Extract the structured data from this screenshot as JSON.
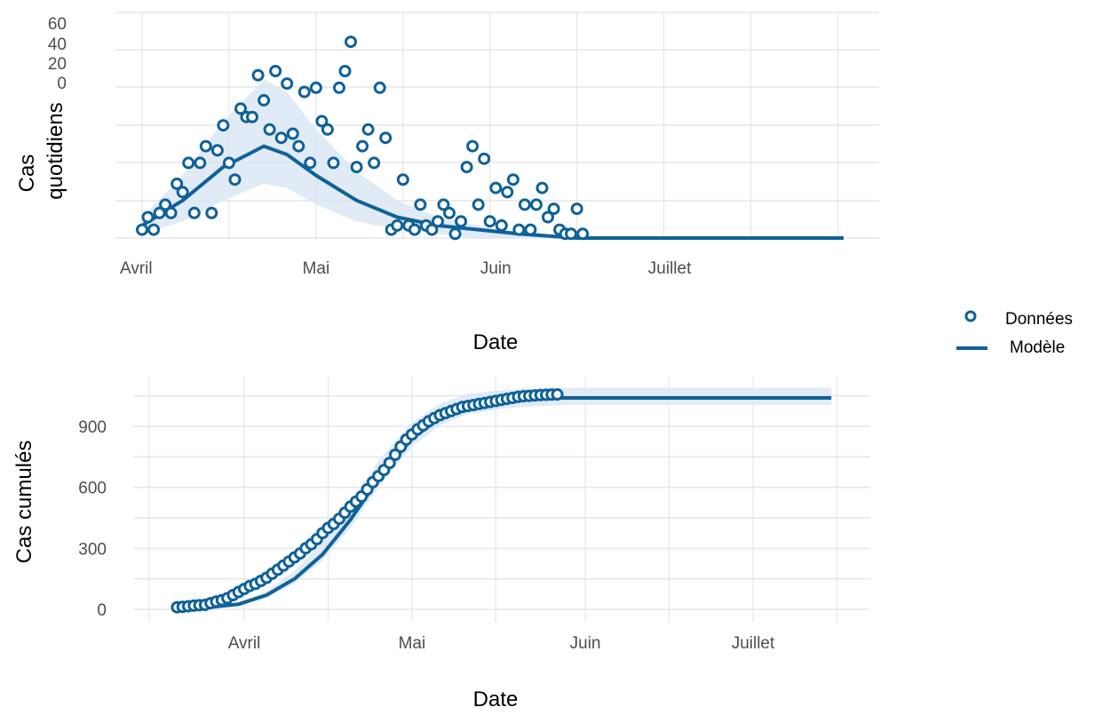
{
  "colors": {
    "series": "#0f6199",
    "ribbon": "#dbe7f3",
    "grid_major": "#e6e6e6",
    "grid_minor": "#f2f2f2",
    "point_fill": "#ffffff"
  },
  "legend": {
    "placement": "right",
    "items": [
      {
        "label": "Données",
        "shape": "open-circle"
      },
      {
        "label": "Modèle",
        "shape": "line"
      }
    ]
  },
  "chart_data": [
    {
      "id": "daily",
      "type": "line",
      "xlabel": "Date",
      "ylabel": "Cas quotidiens",
      "ylabel_lines": [
        "Cas",
        "quotidiens"
      ],
      "x_tick_labels": [
        "Avril",
        "Mai",
        "Juin",
        "Juillet"
      ],
      "x_tick_dates": [
        "2020-04-01",
        "2020-05-01",
        "2020-06-01",
        "2020-07-01"
      ],
      "xlim": [
        "2020-04-01",
        "2020-07-31"
      ],
      "y_tick_labels": [
        "60",
        "40",
        "20",
        "0"
      ],
      "grid": true,
      "series": [
        {
          "name": "Données",
          "kind": "points",
          "x": [
            "2020-04-01",
            "2020-04-02",
            "2020-04-03",
            "2020-04-04",
            "2020-04-05",
            "2020-04-06",
            "2020-04-07",
            "2020-04-08",
            "2020-04-09",
            "2020-04-10",
            "2020-04-11",
            "2020-04-12",
            "2020-04-13",
            "2020-04-14",
            "2020-04-15",
            "2020-04-16",
            "2020-04-17",
            "2020-04-18",
            "2020-04-19",
            "2020-04-20",
            "2020-04-21",
            "2020-04-22",
            "2020-04-23",
            "2020-04-24",
            "2020-04-25",
            "2020-04-26",
            "2020-04-27",
            "2020-04-28",
            "2020-04-29",
            "2020-04-30",
            "2020-05-01",
            "2020-05-02",
            "2020-05-03",
            "2020-05-04",
            "2020-05-05",
            "2020-05-06",
            "2020-05-07",
            "2020-05-08",
            "2020-05-09",
            "2020-05-10",
            "2020-05-11",
            "2020-05-12",
            "2020-05-13",
            "2020-05-14",
            "2020-05-15",
            "2020-05-16",
            "2020-05-17",
            "2020-05-18",
            "2020-05-19",
            "2020-05-20",
            "2020-05-21",
            "2020-05-22",
            "2020-05-23",
            "2020-05-24",
            "2020-05-25",
            "2020-05-26",
            "2020-05-27",
            "2020-05-28",
            "2020-05-29",
            "2020-05-30",
            "2020-05-31",
            "2020-06-01",
            "2020-06-02",
            "2020-06-03",
            "2020-06-04",
            "2020-06-05",
            "2020-06-06",
            "2020-06-07",
            "2020-06-08",
            "2020-06-09",
            "2020-06-10",
            "2020-06-11",
            "2020-06-12",
            "2020-06-13",
            "2020-06-14",
            "2020-06-15",
            "2020-06-16"
          ],
          "y": [
            2,
            5,
            2,
            6,
            8,
            6,
            13,
            11,
            18,
            6,
            18,
            22,
            6,
            21,
            27,
            18,
            14,
            31,
            29,
            29,
            39,
            33,
            26,
            40,
            24,
            37,
            25,
            22,
            35,
            18,
            36,
            28,
            26,
            18,
            36,
            40,
            47,
            17,
            22,
            26,
            18,
            36,
            24,
            2,
            3,
            14,
            3,
            2,
            8,
            3,
            2,
            4,
            8,
            6,
            1,
            4,
            17,
            22,
            8,
            19,
            4,
            12,
            3,
            11,
            14,
            2,
            8,
            2,
            8,
            12,
            5,
            7,
            2,
            1,
            1,
            7,
            1
          ]
        },
        {
          "name": "Modèle",
          "kind": "line",
          "x": [
            "2020-04-01",
            "2020-04-08",
            "2020-04-15",
            "2020-04-22",
            "2020-04-26",
            "2020-05-01",
            "2020-05-08",
            "2020-05-15",
            "2020-05-22",
            "2020-05-29",
            "2020-06-05",
            "2020-06-15",
            "2020-07-01",
            "2020-07-31"
          ],
          "y": [
            3,
            9,
            17,
            22,
            20,
            15,
            9,
            5,
            3,
            2,
            1,
            0,
            0,
            0
          ]
        },
        {
          "name": "Intervalle",
          "kind": "ribbon",
          "x": [
            "2020-04-01",
            "2020-04-08",
            "2020-04-15",
            "2020-04-22",
            "2020-04-26",
            "2020-05-01",
            "2020-05-08",
            "2020-05-15",
            "2020-05-22",
            "2020-05-29",
            "2020-06-05",
            "2020-06-15",
            "2020-07-01",
            "2020-07-31"
          ],
          "lower": [
            1,
            4,
            9,
            13,
            12,
            8,
            4,
            2,
            1,
            0,
            0,
            0,
            0,
            0
          ],
          "upper": [
            5,
            15,
            28,
            38,
            35,
            26,
            16,
            9,
            5,
            3,
            1,
            0,
            0,
            0
          ]
        }
      ]
    },
    {
      "id": "cumulative",
      "type": "line",
      "xlabel": "Date",
      "ylabel": "Cas cumulés",
      "x_tick_labels": [
        "Avril",
        "Mai",
        "Juin",
        "Juillet"
      ],
      "x_tick_dates": [
        "2020-04-01",
        "2020-05-01",
        "2020-06-01",
        "2020-07-01"
      ],
      "xlim": [
        "2020-03-15",
        "2020-07-15"
      ],
      "y_ticks": [
        0,
        300,
        600,
        900
      ],
      "ylim": [
        -50,
        1150
      ],
      "grid": true,
      "series": [
        {
          "name": "Données",
          "kind": "points",
          "x": [
            "2020-03-20",
            "2020-03-21",
            "2020-03-22",
            "2020-03-23",
            "2020-03-24",
            "2020-03-25",
            "2020-03-26",
            "2020-03-27",
            "2020-03-28",
            "2020-03-29",
            "2020-03-30",
            "2020-03-31",
            "2020-04-01",
            "2020-04-02",
            "2020-04-03",
            "2020-04-04",
            "2020-04-05",
            "2020-04-06",
            "2020-04-07",
            "2020-04-08",
            "2020-04-09",
            "2020-04-10",
            "2020-04-11",
            "2020-04-12",
            "2020-04-13",
            "2020-04-14",
            "2020-04-15",
            "2020-04-16",
            "2020-04-17",
            "2020-04-18",
            "2020-04-19",
            "2020-04-20",
            "2020-04-21",
            "2020-04-22",
            "2020-04-23",
            "2020-04-24",
            "2020-04-25",
            "2020-04-26",
            "2020-04-27",
            "2020-04-28",
            "2020-04-29",
            "2020-04-30",
            "2020-05-01",
            "2020-05-02",
            "2020-05-03",
            "2020-05-04",
            "2020-05-05",
            "2020-05-06",
            "2020-05-07",
            "2020-05-08",
            "2020-05-09",
            "2020-05-10",
            "2020-05-11",
            "2020-05-12",
            "2020-05-13",
            "2020-05-14",
            "2020-05-15",
            "2020-05-16",
            "2020-05-17",
            "2020-05-18",
            "2020-05-19",
            "2020-05-20",
            "2020-05-21",
            "2020-05-22",
            "2020-05-23",
            "2020-05-24",
            "2020-05-25",
            "2020-05-26",
            "2020-05-27"
          ],
          "y": [
            10,
            12,
            15,
            18,
            20,
            22,
            30,
            38,
            45,
            55,
            70,
            85,
            100,
            115,
            125,
            140,
            155,
            175,
            195,
            215,
            235,
            255,
            275,
            300,
            320,
            345,
            375,
            400,
            420,
            445,
            475,
            505,
            530,
            555,
            590,
            625,
            655,
            685,
            720,
            760,
            800,
            835,
            860,
            885,
            905,
            925,
            940,
            955,
            965,
            975,
            985,
            995,
            1000,
            1005,
            1010,
            1015,
            1020,
            1025,
            1030,
            1035,
            1040,
            1045,
            1048,
            1050,
            1052,
            1054,
            1055,
            1056,
            1057
          ]
        },
        {
          "name": "Modèle",
          "kind": "line",
          "x": [
            "2020-03-20",
            "2020-03-25",
            "2020-03-31",
            "2020-04-05",
            "2020-04-10",
            "2020-04-15",
            "2020-04-20",
            "2020-04-25",
            "2020-05-01",
            "2020-05-06",
            "2020-05-11",
            "2020-05-18",
            "2020-05-27",
            "2020-07-15"
          ],
          "y": [
            0,
            8,
            25,
            70,
            150,
            270,
            440,
            640,
            840,
            940,
            995,
            1025,
            1040,
            1040
          ]
        },
        {
          "name": "Intervalle",
          "kind": "ribbon",
          "x": [
            "2020-03-20",
            "2020-03-25",
            "2020-03-31",
            "2020-04-05",
            "2020-04-10",
            "2020-04-15",
            "2020-04-20",
            "2020-04-25",
            "2020-05-01",
            "2020-05-06",
            "2020-05-11",
            "2020-05-18",
            "2020-05-27",
            "2020-07-15"
          ],
          "lower": [
            0,
            6,
            20,
            58,
            128,
            240,
            400,
            600,
            800,
            905,
            960,
            990,
            1005,
            1005
          ],
          "upper": [
            2,
            12,
            35,
            90,
            190,
            330,
            520,
            730,
            920,
            1010,
            1060,
            1080,
            1090,
            1090
          ]
        }
      ]
    }
  ]
}
